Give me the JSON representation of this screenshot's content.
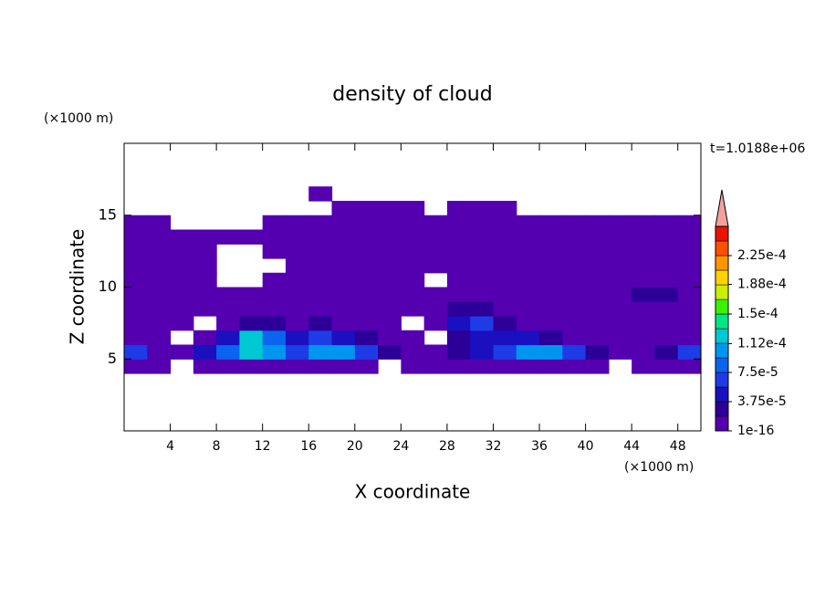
{
  "chart_data": {
    "type": "contour",
    "title": "density of cloud",
    "xlabel": "X coordinate",
    "ylabel": "Z coordinate",
    "x_unit": "(×1000 m)",
    "y_unit": "(×1000 m)",
    "annotation": "t=1.0188e+06",
    "xlim": [
      0,
      50
    ],
    "ylim": [
      0,
      20
    ],
    "xticks": [
      4,
      8,
      12,
      16,
      20,
      24,
      28,
      32,
      36,
      40,
      44,
      48
    ],
    "yticks": [
      5,
      10,
      15
    ],
    "x": [
      1,
      3,
      5,
      7,
      9,
      11,
      13,
      15,
      17,
      19,
      21,
      23,
      25,
      27,
      29,
      31,
      33,
      35,
      37,
      39,
      41,
      43,
      45,
      47,
      49
    ],
    "y": [
      4.5,
      5.5,
      6.5,
      7.5,
      8.5,
      9.5,
      10.5,
      11.5,
      12.5,
      13.5,
      14.5,
      15.5,
      16.5
    ],
    "z": [
      [
        1e-05,
        1e-05,
        null,
        1e-05,
        1e-05,
        1e-05,
        1e-05,
        1e-05,
        1e-05,
        1e-05,
        1e-05,
        null,
        1e-05,
        1e-05,
        1e-05,
        1e-05,
        1e-05,
        1e-05,
        1e-05,
        1e-05,
        1e-05,
        null,
        1e-05,
        1e-05,
        1e-05
      ],
      [
        7e-05,
        1e-05,
        1e-05,
        5e-05,
        9e-05,
        0.00012,
        0.0001,
        7e-05,
        0.0001,
        0.0001,
        7e-05,
        3e-05,
        1e-05,
        1e-05,
        3e-05,
        5e-05,
        7e-05,
        0.0001,
        0.0001,
        7e-05,
        3e-05,
        1e-05,
        1e-05,
        3e-05,
        7e-05
      ],
      [
        1e-05,
        1e-05,
        null,
        1e-05,
        5e-05,
        0.00012,
        9e-05,
        5e-05,
        7e-05,
        5e-05,
        3e-05,
        1e-05,
        1e-05,
        null,
        3e-05,
        5e-05,
        5e-05,
        5e-05,
        3e-05,
        1e-05,
        1e-05,
        1e-05,
        1e-05,
        1e-05,
        1e-05
      ],
      [
        1e-05,
        1e-05,
        1e-05,
        null,
        1e-05,
        3e-05,
        3e-05,
        1e-05,
        3e-05,
        1e-05,
        1e-05,
        1e-05,
        null,
        1e-05,
        5e-05,
        7e-05,
        3e-05,
        1e-05,
        1e-05,
        1e-05,
        1e-05,
        1e-05,
        1e-05,
        1e-05,
        1e-05
      ],
      [
        1e-05,
        1e-05,
        1e-05,
        1e-05,
        1e-05,
        1e-05,
        1e-05,
        1e-05,
        1e-05,
        1e-05,
        1e-05,
        1e-05,
        1e-05,
        1e-05,
        3e-05,
        3e-05,
        1e-05,
        1e-05,
        1e-05,
        1e-05,
        1e-05,
        1e-05,
        1e-05,
        1e-05,
        1e-05
      ],
      [
        1e-05,
        1e-05,
        1e-05,
        1e-05,
        1e-05,
        1e-05,
        1e-05,
        1e-05,
        1e-05,
        1e-05,
        1e-05,
        1e-05,
        1e-05,
        1e-05,
        1e-05,
        1e-05,
        1e-05,
        1e-05,
        1e-05,
        1e-05,
        1e-05,
        1e-05,
        3e-05,
        3e-05,
        1e-05
      ],
      [
        1e-05,
        1e-05,
        1e-05,
        1e-05,
        null,
        null,
        1e-05,
        1e-05,
        1e-05,
        1e-05,
        1e-05,
        1e-05,
        1e-05,
        null,
        1e-05,
        1e-05,
        1e-05,
        1e-05,
        1e-05,
        1e-05,
        1e-05,
        1e-05,
        1e-05,
        1e-05,
        1e-05
      ],
      [
        1e-05,
        1e-05,
        1e-05,
        1e-05,
        null,
        null,
        null,
        1e-05,
        1e-05,
        1e-05,
        1e-05,
        1e-05,
        1e-05,
        1e-05,
        1e-05,
        1e-05,
        1e-05,
        1e-05,
        1e-05,
        1e-05,
        1e-05,
        1e-05,
        1e-05,
        1e-05,
        1e-05
      ],
      [
        1e-05,
        1e-05,
        1e-05,
        1e-05,
        null,
        null,
        1e-05,
        1e-05,
        1e-05,
        1e-05,
        1e-05,
        1e-05,
        1e-05,
        1e-05,
        1e-05,
        1e-05,
        1e-05,
        1e-05,
        1e-05,
        1e-05,
        1e-05,
        1e-05,
        1e-05,
        1e-05,
        1e-05
      ],
      [
        1e-05,
        1e-05,
        1e-05,
        1e-05,
        1e-05,
        1e-05,
        1e-05,
        1e-05,
        1e-05,
        1e-05,
        1e-05,
        1e-05,
        1e-05,
        1e-05,
        1e-05,
        1e-05,
        1e-05,
        1e-05,
        1e-05,
        1e-05,
        1e-05,
        1e-05,
        1e-05,
        1e-05,
        1e-05
      ],
      [
        1e-05,
        1e-05,
        null,
        null,
        null,
        null,
        1e-05,
        1e-05,
        1e-05,
        1e-05,
        1e-05,
        1e-05,
        1e-05,
        1e-05,
        1e-05,
        1e-05,
        1e-05,
        1e-05,
        1e-05,
        1e-05,
        1e-05,
        1e-05,
        1e-05,
        1e-05,
        1e-05
      ],
      [
        null,
        null,
        null,
        null,
        null,
        null,
        null,
        null,
        null,
        1e-05,
        1e-05,
        1e-05,
        1e-05,
        null,
        1e-05,
        1e-05,
        1e-05,
        null,
        null,
        null,
        null,
        null,
        null,
        null,
        null
      ],
      [
        null,
        null,
        null,
        null,
        null,
        null,
        null,
        null,
        1e-05,
        null,
        null,
        null,
        null,
        null,
        null,
        null,
        null,
        null,
        null,
        null,
        null,
        null,
        null,
        null,
        null
      ]
    ],
    "levels": [
      1e-16,
      1.875e-05,
      3.75e-05,
      5.625e-05,
      7.5e-05,
      9.375e-05,
      0.0001125,
      0.00013125,
      0.00015,
      0.00016875,
      0.0001875,
      0.00020625,
      0.000225,
      0.00024375
    ],
    "clim_top": 0.0002625,
    "colors": [
      "#5400b0",
      "#2c0098",
      "#1a10c0",
      "#1e3ce6",
      "#0a64f0",
      "#0096f0",
      "#00c8d2",
      "#00e682",
      "#3cf000",
      "#c8f000",
      "#ffd200",
      "#ff9600",
      "#ff5000",
      "#e61400"
    ],
    "colorbar_ticks": [
      {
        "value": 1e-16,
        "label": "1e-16"
      },
      {
        "value": 3.75e-05,
        "label": "3.75e-5"
      },
      {
        "value": 7.5e-05,
        "label": "7.5e-5"
      },
      {
        "value": 0.000112,
        "label": "1.12e-4"
      },
      {
        "value": 0.00015,
        "label": "1.5e-4"
      },
      {
        "value": 0.000188,
        "label": "1.88e-4"
      },
      {
        "value": 0.000225,
        "label": "2.25e-4"
      }
    ]
  }
}
